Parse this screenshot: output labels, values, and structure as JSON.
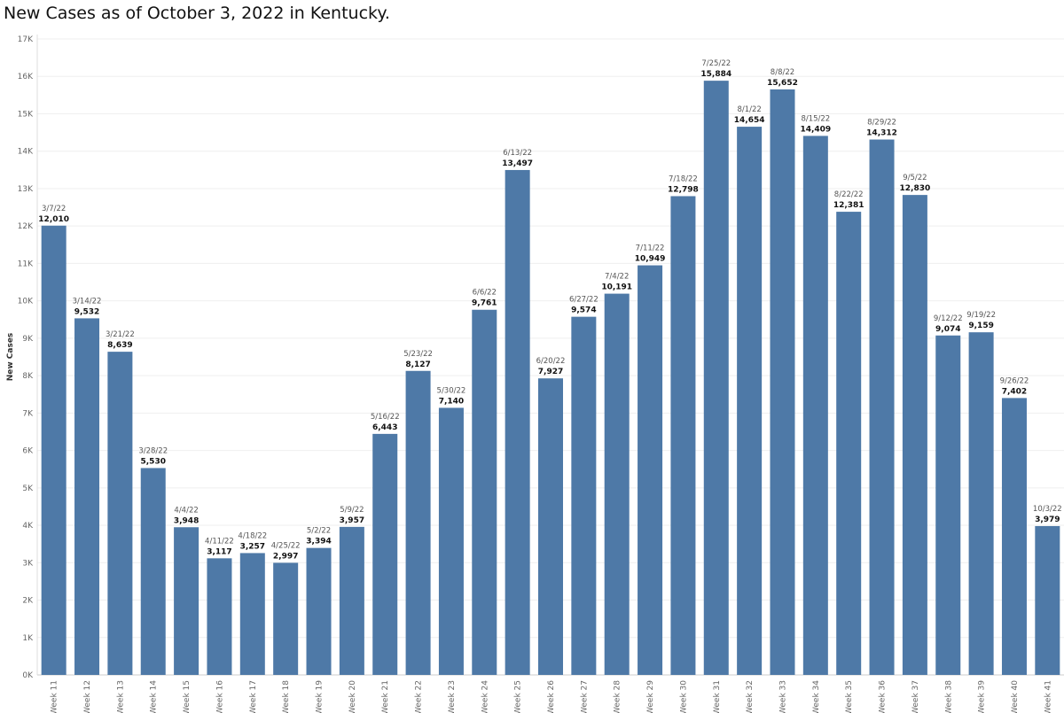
{
  "chart_data": {
    "type": "bar",
    "title": "New Cases as of October 3, 2022 in Kentucky.",
    "xlabel": "",
    "ylabel": "New Cases",
    "ylim": [
      0,
      17000
    ],
    "yticks": [
      "0K",
      "1K",
      "2K",
      "3K",
      "4K",
      "5K",
      "6K",
      "7K",
      "8K",
      "9K",
      "10K",
      "11K",
      "12K",
      "13K",
      "14K",
      "15K",
      "16K",
      "17K"
    ],
    "grid": true,
    "bar_color": "#4e79a7",
    "categories": [
      "Week 11",
      "Week 12",
      "Week 13",
      "Week 14",
      "Week 15",
      "Week 16",
      "Week 17",
      "Week 18",
      "Week 19",
      "Week 20",
      "Week 21",
      "Week 22",
      "Week 23",
      "Week 24",
      "Week 25",
      "Week 26",
      "Week 27",
      "Week 28",
      "Week 29",
      "Week 30",
      "Week 31",
      "Week 32",
      "Week 33",
      "Week 34",
      "Week 35",
      "Week 36",
      "Week 37",
      "Week 38",
      "Week 39",
      "Week 40",
      "Week 41"
    ],
    "dates": [
      "3/7/22",
      "3/14/22",
      "3/21/22",
      "3/28/22",
      "4/4/22",
      "4/11/22",
      "4/18/22",
      "4/25/22",
      "5/2/22",
      "5/9/22",
      "5/16/22",
      "5/23/22",
      "5/30/22",
      "6/6/22",
      "6/13/22",
      "6/20/22",
      "6/27/22",
      "7/4/22",
      "7/11/22",
      "7/18/22",
      "7/25/22",
      "8/1/22",
      "8/8/22",
      "8/15/22",
      "8/22/22",
      "8/29/22",
      "9/5/22",
      "9/12/22",
      "9/19/22",
      "9/26/22",
      "10/3/22"
    ],
    "values": [
      12010,
      9532,
      8639,
      5530,
      3948,
      3117,
      3257,
      2997,
      3394,
      3957,
      6443,
      8127,
      7140,
      9761,
      13497,
      7927,
      9574,
      10191,
      10949,
      12798,
      15884,
      14654,
      15652,
      14409,
      12381,
      14312,
      12830,
      9074,
      9159,
      7402,
      3979
    ],
    "value_labels": [
      "12,010",
      "9,532",
      "8,639",
      "5,530",
      "3,948",
      "3,117",
      "3,257",
      "2,997",
      "3,394",
      "3,957",
      "6,443",
      "8,127",
      "7,140",
      "9,761",
      "13,497",
      "7,927",
      "9,574",
      "10,191",
      "10,949",
      "12,798",
      "15,884",
      "14,654",
      "15,652",
      "14,409",
      "12,381",
      "14,312",
      "12,830",
      "9,074",
      "9,159",
      "7,402",
      "3,979"
    ]
  }
}
